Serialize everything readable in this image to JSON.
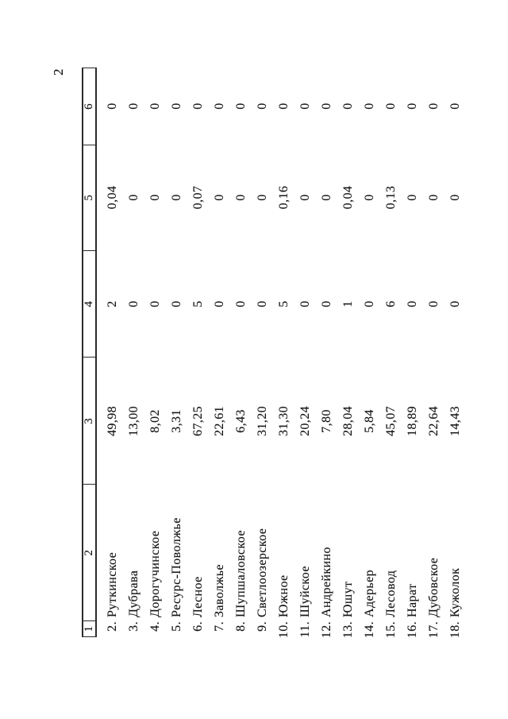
{
  "page_number": "2",
  "table": {
    "columns": [
      "1",
      "2",
      "3",
      "4",
      "5",
      "6"
    ],
    "rows": [
      {
        "cells": [
          "2.",
          "Руткинское",
          "49,98",
          "2",
          "0,04",
          "0"
        ]
      },
      {
        "cells": [
          "3.",
          "Дубрава",
          "13,00",
          "0",
          "0",
          "0"
        ]
      },
      {
        "cells": [
          "4.",
          "Дорогучинское",
          "8,02",
          "0",
          "0",
          "0"
        ]
      },
      {
        "cells": [
          "5.",
          "Ресурс-Поволжье",
          "3,31",
          "0",
          "0",
          "0"
        ]
      },
      {
        "cells": [
          "6.",
          "Лесное",
          "67,25",
          "5",
          "0,07",
          "0"
        ]
      },
      {
        "cells": [
          "7.",
          "Заволжье",
          "22,61",
          "0",
          "0",
          "0"
        ]
      },
      {
        "cells": [
          "8.",
          "Шупшаловское",
          "6,43",
          "0",
          "0",
          "0"
        ]
      },
      {
        "cells": [
          "9.",
          "Светлоозерское",
          "31,20",
          "0",
          "0",
          "0"
        ]
      },
      {
        "cells": [
          "10.",
          "Южное",
          "31,30",
          "5",
          "0,16",
          "0"
        ]
      },
      {
        "cells": [
          "11.",
          "Шуйское",
          "20,24",
          "0",
          "0",
          "0"
        ]
      },
      {
        "cells": [
          "12.",
          "Андрейкино",
          "7,80",
          "0",
          "0",
          "0"
        ]
      },
      {
        "cells": [
          "13.",
          "Юшут",
          "28,04",
          "1",
          "0,04",
          "0"
        ]
      },
      {
        "cells": [
          "14.",
          "Адерьер",
          "5,84",
          "0",
          "0",
          "0"
        ]
      },
      {
        "cells": [
          "15.",
          "Лесовод",
          "45,07",
          "6",
          "0,13",
          "0"
        ]
      },
      {
        "cells": [
          "16.",
          "Нарат",
          "18,89",
          "0",
          "0",
          "0"
        ]
      },
      {
        "cells": [
          "17.",
          "Дубовское",
          "22,64",
          "0",
          "0",
          "0"
        ]
      },
      {
        "cells": [
          "18.",
          "Кужолок",
          "14,43",
          "0",
          "0",
          "0"
        ]
      }
    ]
  }
}
